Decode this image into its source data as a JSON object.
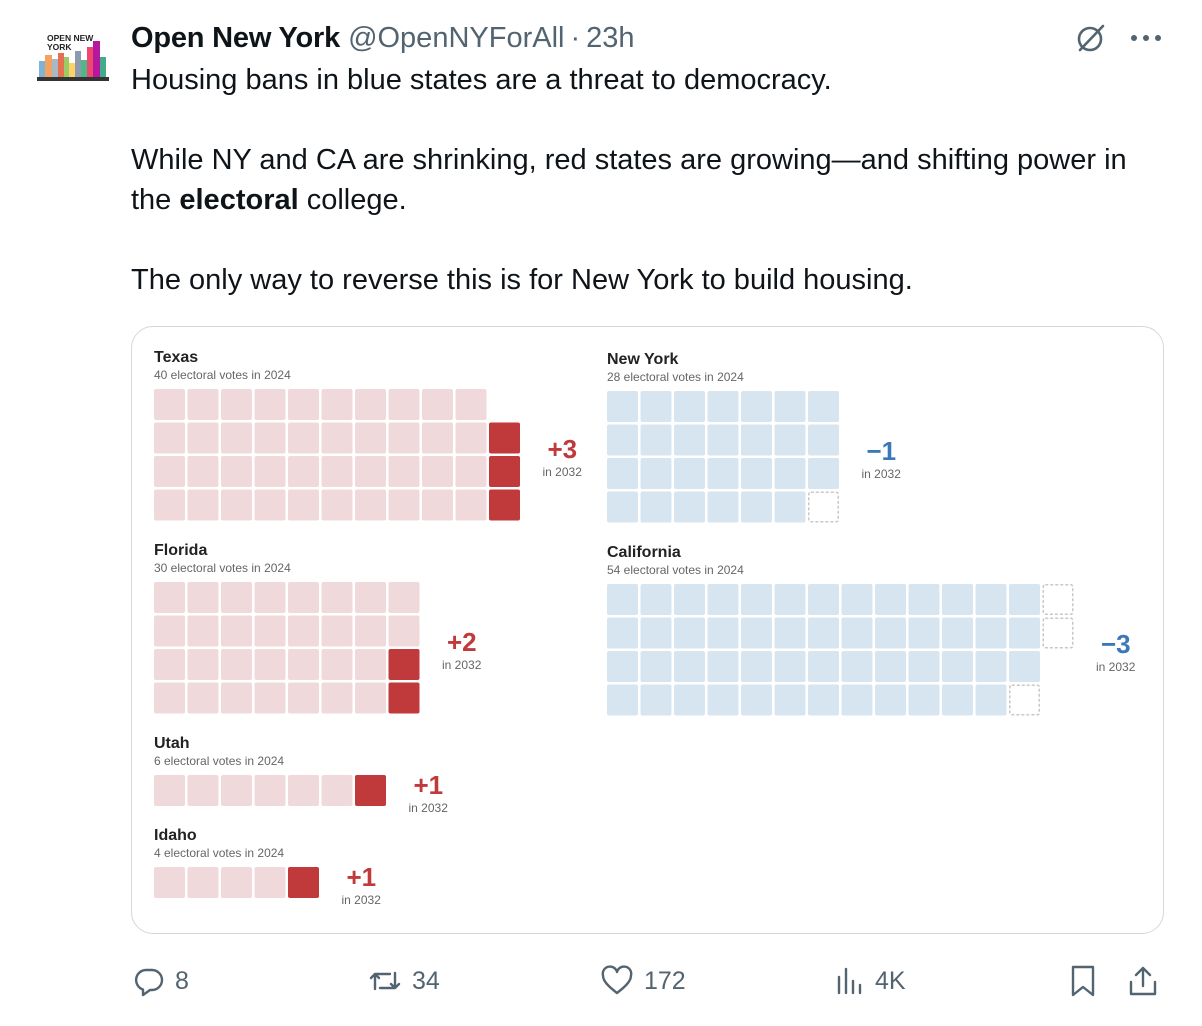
{
  "tweet": {
    "author_name": "Open New York",
    "handle": "@OpenNYForAll",
    "separator": "·",
    "time": "23h",
    "avatar_text_line1": "OPEN NEW",
    "avatar_text_line2": "YORK",
    "text_p1": "Housing bans in blue states are a threat to democracy.",
    "text_p2_part1": "While NY and CA are shrinking, red states are growing—and shifting power in the ",
    "text_p2_bold": "electoral",
    "text_p2_part2": " college.",
    "text_p3": "The only way to reverse this is for New York to build housing."
  },
  "actions": {
    "replies": "8",
    "reposts": "34",
    "likes": "172",
    "views": "4K"
  },
  "colors": {
    "red_dark": "#c0393b",
    "red_light": "#f0d9da",
    "blue_light": "#d7e5f1",
    "blue_text": "#3b78b8",
    "red_text": "#c0393b",
    "text_muted": "#536471"
  },
  "chart_data": [
    {
      "type": "waffle",
      "state": "Texas",
      "subtitle": "40 electoral votes in 2024",
      "votes_2024": 40,
      "change": 3,
      "change_label": "+3",
      "change_sub": "in 2032"
    },
    {
      "type": "waffle",
      "state": "Florida",
      "subtitle": "30 electoral votes in 2024",
      "votes_2024": 30,
      "change": 2,
      "change_label": "+2",
      "change_sub": "in 2032"
    },
    {
      "type": "waffle",
      "state": "Utah",
      "subtitle": "6 electoral votes in 2024",
      "votes_2024": 6,
      "change": 1,
      "change_label": "+1",
      "change_sub": "in 2032"
    },
    {
      "type": "waffle",
      "state": "Idaho",
      "subtitle": "4 electoral votes in 2024",
      "votes_2024": 4,
      "change": 1,
      "change_label": "+1",
      "change_sub": "in 2032"
    },
    {
      "type": "waffle",
      "state": "New York",
      "subtitle": "28 electoral votes in 2024",
      "votes_2024": 28,
      "change": -1,
      "change_label": "−1",
      "change_sub": "in 2032"
    },
    {
      "type": "waffle",
      "state": "California",
      "subtitle": "54 electoral votes in 2024",
      "votes_2024": 54,
      "change": -3,
      "change_label": "−3",
      "change_sub": "in 2032"
    }
  ]
}
